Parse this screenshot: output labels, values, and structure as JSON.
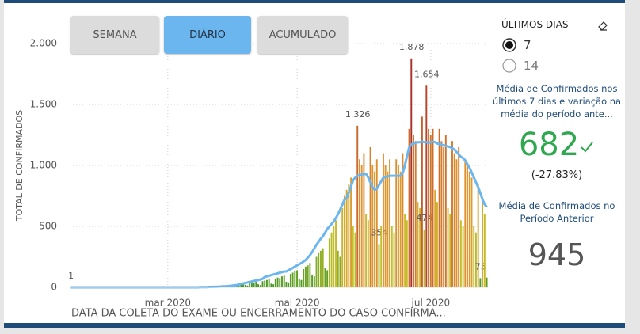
{
  "buttons": [
    "SEMANA",
    "DIÁRIO",
    "ACUMULADO"
  ],
  "panel": {
    "title": "ÚLTIMOS DIAS",
    "options": [
      "7",
      "14"
    ],
    "current_label": "Média de Confirmados nos últimos 7 dias e variação na média do período ante...",
    "current_value": 682,
    "change": "(-27.83%)",
    "previous_label": "Média de Confirmados no Período Anterior",
    "previous_value": 945
  },
  "chart_data": {
    "type": "bar",
    "x_label": "DATA DA COLETA DO EXAME OU ENCERRAMENTO DO CASO CONFIRMA...",
    "y_label": "TOTAL DE CONFIRMADOS",
    "ylim": [
      0,
      2000
    ],
    "yticks": [
      0,
      500,
      {
        "value": 1000,
        "label": "1.000"
      },
      {
        "value": 1500,
        "label": "1.500"
      },
      {
        "value": 2000,
        "label": "2.000"
      }
    ],
    "grid": true,
    "color_scale": [
      "#3f9420",
      "#c4c02a",
      "#e0962c",
      "#c0502a",
      "#a02828"
    ],
    "categories": [
      null,
      null,
      null,
      null,
      null,
      null,
      null,
      null,
      null,
      null,
      null,
      null,
      null,
      null,
      null,
      null,
      null,
      null,
      null,
      null,
      null,
      null,
      null,
      null,
      null,
      null,
      null,
      null,
      null,
      null,
      null,
      null,
      null,
      null,
      null,
      null,
      null,
      null,
      null,
      null,
      null,
      null,
      null,
      null,
      null,
      "mar 2020",
      null,
      null,
      null,
      null,
      null,
      null,
      null,
      null,
      null,
      null,
      null,
      null,
      null,
      null,
      null,
      null,
      null,
      null,
      null,
      null,
      null,
      null,
      null,
      null,
      null,
      null,
      null,
      null,
      null,
      null,
      null,
      null,
      null,
      null,
      null,
      null,
      null,
      null,
      null,
      null,
      null,
      null,
      null,
      null,
      null,
      null,
      null,
      null,
      null,
      null,
      null,
      null,
      null,
      null,
      null,
      null,
      null,
      null,
      null,
      "mai 2020",
      null,
      null,
      null,
      null,
      null,
      null,
      null,
      null,
      null,
      null,
      null,
      null,
      null,
      null,
      null,
      null,
      null,
      null,
      null,
      null,
      null,
      null,
      null,
      null,
      null,
      null,
      null,
      null,
      null,
      null,
      null,
      null,
      null,
      null,
      null,
      null,
      null,
      null,
      null,
      null,
      null,
      null,
      null,
      null,
      null,
      null,
      null,
      null,
      null,
      null,
      null,
      null,
      null,
      null,
      null,
      null,
      null,
      null,
      null,
      null,
      null,
      "jul 2020",
      null,
      null,
      null,
      null,
      null,
      null,
      null,
      null,
      null,
      null,
      null,
      null,
      null,
      null,
      null,
      null,
      null,
      null,
      null,
      null,
      null,
      null,
      null,
      null,
      null,
      null
    ],
    "series": [
      {
        "type": "bar",
        "values": [
          1,
          0,
          0,
          0,
          0,
          0,
          0,
          0,
          0,
          0,
          0,
          0,
          0,
          0,
          0,
          0,
          0,
          0,
          0,
          0,
          0,
          0,
          0,
          0,
          0,
          0,
          0,
          0,
          0,
          0,
          0,
          0,
          0,
          0,
          0,
          0,
          0,
          0,
          0,
          0,
          0,
          0,
          0,
          0,
          0,
          0,
          0,
          0,
          0,
          0,
          0,
          1,
          0,
          2,
          1,
          0,
          3,
          2,
          1,
          4,
          2,
          0,
          5,
          3,
          2,
          6,
          4,
          1,
          8,
          5,
          10,
          6,
          12,
          15,
          8,
          5,
          18,
          22,
          14,
          25,
          30,
          20,
          15,
          35,
          40,
          38,
          45,
          25,
          18,
          50,
          55,
          60,
          65,
          30,
          25,
          70,
          80,
          75,
          90,
          95,
          45,
          40,
          110,
          120,
          130,
          140,
          70,
          60,
          150,
          170,
          180,
          200,
          100,
          90,
          250,
          280,
          300,
          320,
          160,
          140,
          400,
          450,
          500,
          550,
          300,
          250,
          650,
          750,
          800,
          850,
          900,
          500,
          450,
          1326,
          1050,
          1000,
          1100,
          600,
          550,
          1150,
          1000,
          950,
          1050,
          354,
          500,
          1100,
          1000,
          950,
          1050,
          500,
          450,
          1050,
          1000,
          950,
          1100,
          600,
          550,
          1300,
          1878,
          1250,
          1200,
          700,
          650,
          1400,
          474,
          1654,
          1300,
          1250,
          1300,
          800,
          700,
          1300,
          1200,
          1150,
          1250,
          650,
          600,
          1200,
          1100,
          1050,
          1150,
          550,
          500,
          1050,
          1000,
          950,
          900,
          500,
          450,
          850,
          75,
          700,
          600,
          80
        ],
        "value_labels": [
          "1",
          null,
          null,
          null,
          null,
          null,
          null,
          null,
          null,
          null,
          null,
          null,
          null,
          null,
          null,
          null,
          null,
          null,
          null,
          null,
          null,
          null,
          null,
          null,
          null,
          null,
          null,
          null,
          null,
          null,
          null,
          null,
          null,
          null,
          null,
          null,
          null,
          null,
          null,
          null,
          null,
          null,
          null,
          null,
          null,
          null,
          null,
          null,
          null,
          null,
          null,
          null,
          null,
          null,
          null,
          null,
          null,
          null,
          null,
          null,
          null,
          null,
          null,
          null,
          null,
          null,
          null,
          null,
          null,
          null,
          null,
          null,
          null,
          null,
          null,
          null,
          null,
          null,
          null,
          null,
          null,
          null,
          null,
          null,
          null,
          null,
          null,
          null,
          null,
          null,
          null,
          null,
          null,
          null,
          null,
          null,
          null,
          null,
          null,
          null,
          null,
          null,
          null,
          null,
          null,
          null,
          null,
          null,
          null,
          null,
          null,
          null,
          null,
          null,
          null,
          null,
          null,
          null,
          null,
          null,
          null,
          null,
          null,
          null,
          null,
          null,
          null,
          null,
          null,
          null,
          null,
          null,
          null,
          "1.326",
          null,
          null,
          null,
          null,
          null,
          null,
          null,
          null,
          null,
          "354",
          null,
          null,
          null,
          null,
          null,
          null,
          null,
          null,
          null,
          null,
          null,
          null,
          null,
          null,
          "1.878",
          null,
          null,
          null,
          null,
          null,
          "474",
          "1.654",
          null,
          null,
          null,
          null,
          null,
          null,
          null,
          null,
          null,
          null,
          null,
          null,
          null,
          null,
          null,
          null,
          null,
          null,
          null,
          null,
          null,
          null,
          null,
          null,
          "75",
          null,
          null,
          null
        ]
      },
      {
        "type": "line",
        "color": "#6cb6f0",
        "values": [
          0,
          0,
          0,
          0,
          0,
          0,
          0,
          0,
          0,
          0,
          0,
          0,
          0,
          0,
          0,
          0,
          0,
          0,
          0,
          0,
          0,
          0,
          0,
          0,
          0,
          0,
          0,
          0,
          0,
          0,
          0,
          0,
          0,
          0,
          0,
          0,
          0,
          0,
          0,
          0,
          0,
          0,
          0,
          0,
          0,
          0,
          0,
          0,
          0,
          0,
          0,
          0,
          0,
          0,
          0,
          0,
          0,
          0,
          0,
          0,
          1,
          1,
          2,
          2,
          3,
          3,
          4,
          4,
          5,
          6,
          7,
          8,
          9,
          10,
          12,
          14,
          16,
          19,
          23,
          28,
          32,
          36,
          40,
          44,
          48,
          52,
          56,
          60,
          65,
          70,
          85,
          90,
          95,
          100,
          105,
          110,
          115,
          120,
          125,
          130,
          130,
          140,
          150,
          160,
          170,
          180,
          190,
          200,
          212,
          225,
          245,
          265,
          290,
          320,
          350,
          375,
          400,
          420,
          450,
          480,
          500,
          520,
          540,
          570,
          600,
          640,
          680,
          720,
          735,
          780,
          830,
          880,
          900,
          915,
          920,
          925,
          930,
          930,
          900,
          860,
          820,
          800,
          810,
          840,
          870,
          900,
          905,
          910,
          915,
          915,
          915,
          915,
          915,
          915,
          940,
          1000,
          1080,
          1150,
          1170,
          1180,
          1185,
          1190,
          1190,
          1195,
          1190,
          1190,
          1185,
          1190,
          1195,
          1190,
          1180,
          1175,
          1170,
          1165,
          1160,
          1155,
          1150,
          1140,
          1130,
          1110,
          1090,
          1070,
          1060,
          1040,
          1010,
          980,
          940,
          900,
          860,
          820,
          770,
          720,
          680,
          660
        ]
      }
    ]
  }
}
